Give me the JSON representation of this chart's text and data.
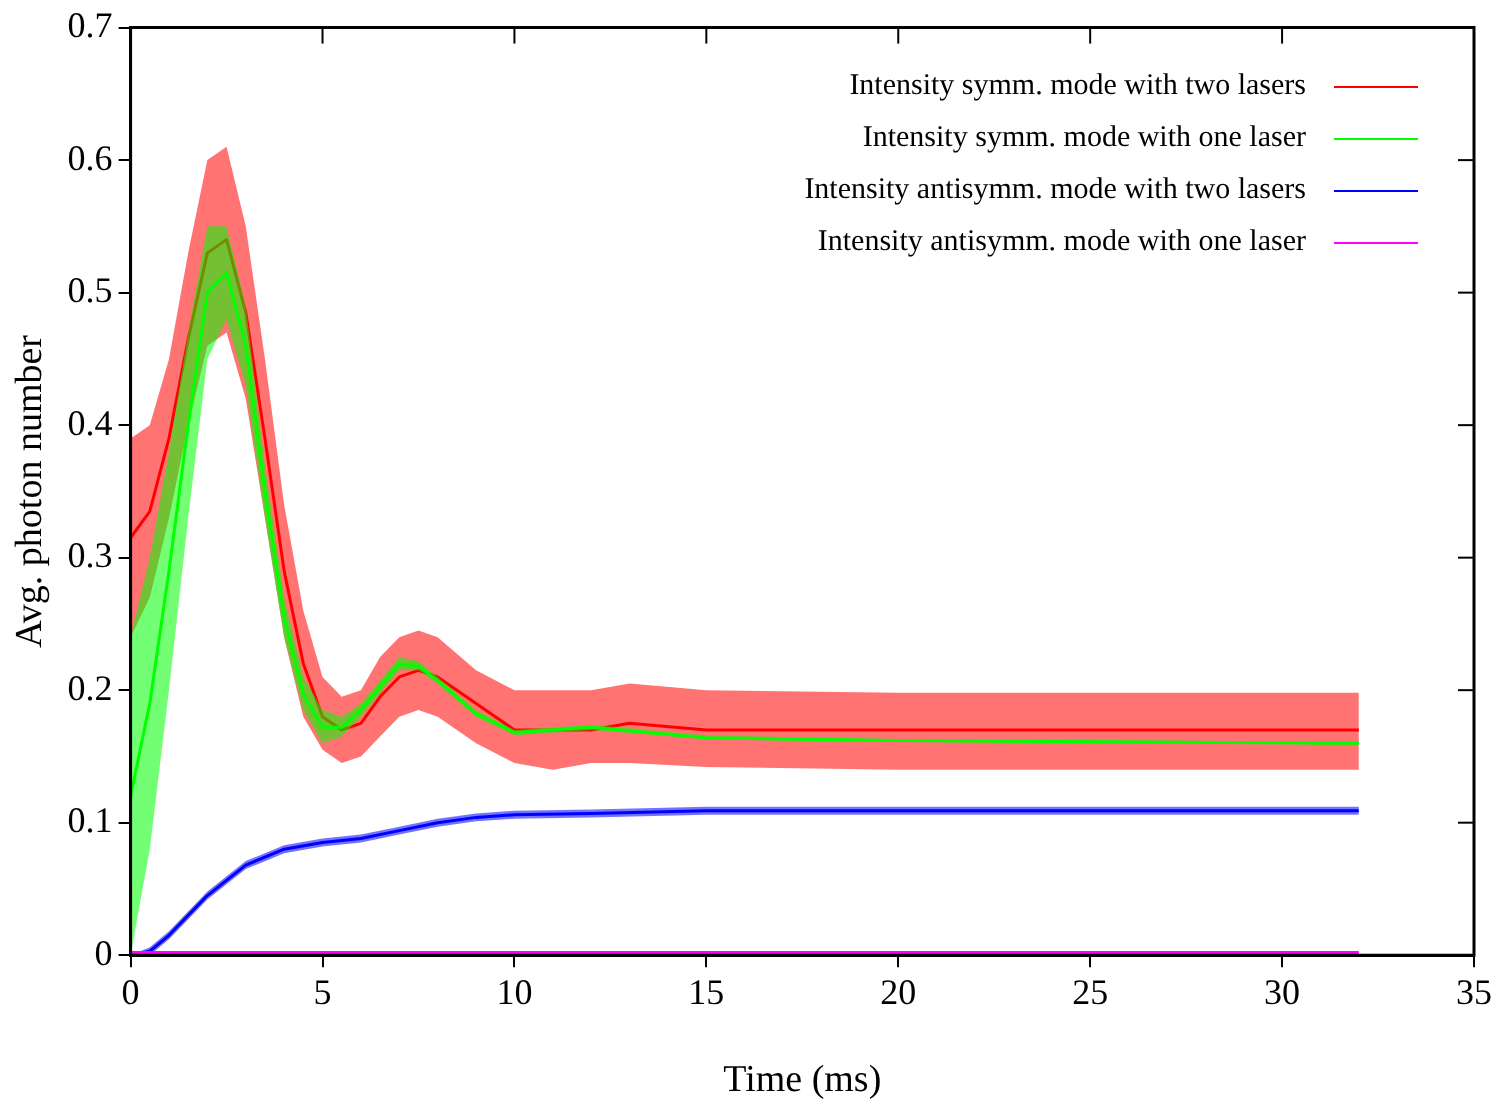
{
  "chart_data": {
    "type": "line",
    "xlabel": "Time (ms)",
    "ylabel": "Avg. photon number",
    "xlim": [
      0,
      35
    ],
    "xticks": [
      0,
      5,
      10,
      15,
      20,
      25,
      30,
      35
    ],
    "ylim": [
      0,
      0.7
    ],
    "yticks": [
      0,
      0.1,
      0.2,
      0.3,
      0.4,
      0.5,
      0.6,
      0.7
    ],
    "grid": false,
    "legend": "top right",
    "marker": "none",
    "line_style": "solid",
    "series": [
      {
        "name": "Intensity symm. mode with two lasers",
        "color": "#ff0000",
        "x": [
          0,
          0.5,
          1,
          1.5,
          2,
          2.5,
          3,
          3.5,
          4,
          4.5,
          5,
          5.5,
          6,
          6.5,
          7,
          7.5,
          8,
          9,
          10,
          11,
          12,
          13,
          15,
          20,
          25,
          32
        ],
        "values": [
          0.315,
          0.335,
          0.39,
          0.465,
          0.53,
          0.54,
          0.485,
          0.39,
          0.29,
          0.22,
          0.18,
          0.17,
          0.175,
          0.195,
          0.21,
          0.215,
          0.21,
          0.19,
          0.17,
          0.17,
          0.17,
          0.175,
          0.17,
          0.17,
          0.17,
          0.17
        ],
        "lower": [
          0.24,
          0.27,
          0.33,
          0.4,
          0.46,
          0.47,
          0.42,
          0.33,
          0.24,
          0.18,
          0.155,
          0.145,
          0.15,
          0.165,
          0.18,
          0.185,
          0.18,
          0.16,
          0.145,
          0.14,
          0.145,
          0.145,
          0.142,
          0.14,
          0.14,
          0.14
        ],
        "upper": [
          0.39,
          0.4,
          0.45,
          0.53,
          0.6,
          0.61,
          0.55,
          0.45,
          0.34,
          0.26,
          0.21,
          0.195,
          0.2,
          0.225,
          0.24,
          0.245,
          0.24,
          0.215,
          0.2,
          0.2,
          0.2,
          0.205,
          0.2,
          0.198,
          0.198,
          0.198
        ]
      },
      {
        "name": "Intensity symm. mode with one laser",
        "color": "#00ff00",
        "x": [
          0,
          0.5,
          1,
          1.5,
          2,
          2.5,
          3,
          3.5,
          4,
          4.5,
          5,
          5.5,
          6,
          7,
          7.5,
          8,
          9,
          10,
          12,
          15,
          20,
          32
        ],
        "values": [
          0.12,
          0.19,
          0.29,
          0.4,
          0.5,
          0.515,
          0.46,
          0.35,
          0.255,
          0.197,
          0.172,
          0.172,
          0.185,
          0.22,
          0.218,
          0.207,
          0.182,
          0.168,
          0.172,
          0.164,
          0.162,
          0.16
        ],
        "lower": [
          0,
          0.08,
          0.2,
          0.33,
          0.45,
          0.48,
          0.43,
          0.33,
          0.24,
          0.185,
          0.16,
          0.165,
          0.18,
          0.215,
          0.215,
          0.205,
          0.18,
          0.166,
          0.17,
          0.163,
          0.161,
          0.159
        ],
        "upper": [
          0.24,
          0.3,
          0.38,
          0.47,
          0.55,
          0.55,
          0.49,
          0.37,
          0.27,
          0.21,
          0.185,
          0.18,
          0.19,
          0.225,
          0.222,
          0.21,
          0.185,
          0.17,
          0.174,
          0.166,
          0.163,
          0.161
        ]
      },
      {
        "name": "Intensity antisymm. mode with two lasers",
        "color": "#0000ff",
        "x": [
          0,
          0.5,
          1,
          2,
          3,
          4,
          5,
          6,
          7,
          8,
          9,
          10,
          12,
          15,
          20,
          32
        ],
        "values": [
          0,
          0.003,
          0.015,
          0.045,
          0.068,
          0.08,
          0.085,
          0.088,
          0.094,
          0.1,
          0.104,
          0.106,
          0.107,
          0.109,
          0.109,
          0.109
        ],
        "lower": [
          0,
          0,
          0.012,
          0.042,
          0.065,
          0.077,
          0.082,
          0.085,
          0.091,
          0.097,
          0.101,
          0.103,
          0.104,
          0.106,
          0.106,
          0.106
        ],
        "upper": [
          0,
          0.006,
          0.018,
          0.048,
          0.071,
          0.083,
          0.088,
          0.091,
          0.097,
          0.103,
          0.107,
          0.109,
          0.11,
          0.112,
          0.112,
          0.112
        ]
      },
      {
        "name": "Intensity antisymm. mode with one laser",
        "color": "#ff00ff",
        "x": [
          0,
          32
        ],
        "values": [
          0.002,
          0.002
        ]
      }
    ]
  }
}
